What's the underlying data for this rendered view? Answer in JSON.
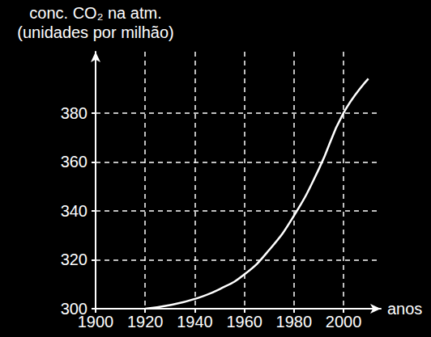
{
  "chart_data": {
    "type": "line",
    "y_label": "conc. CO₂ na atm.\n(unidades por milhão)",
    "x_label": "anos",
    "x": [
      1920,
      1930,
      1940,
      1950,
      1960,
      1970,
      1980,
      1990,
      2000,
      2010
    ],
    "values": [
      300,
      301.5,
      304,
      308,
      314,
      324,
      338,
      357,
      380,
      394
    ],
    "color": "#ffffff",
    "xlim": [
      1900,
      2015
    ],
    "xticks": [
      1900,
      1920,
      1940,
      1960,
      1980,
      2000
    ],
    "ylim": [
      300,
      405
    ],
    "yticks": [
      300,
      320,
      340,
      360,
      380
    ],
    "grid": true
  }
}
